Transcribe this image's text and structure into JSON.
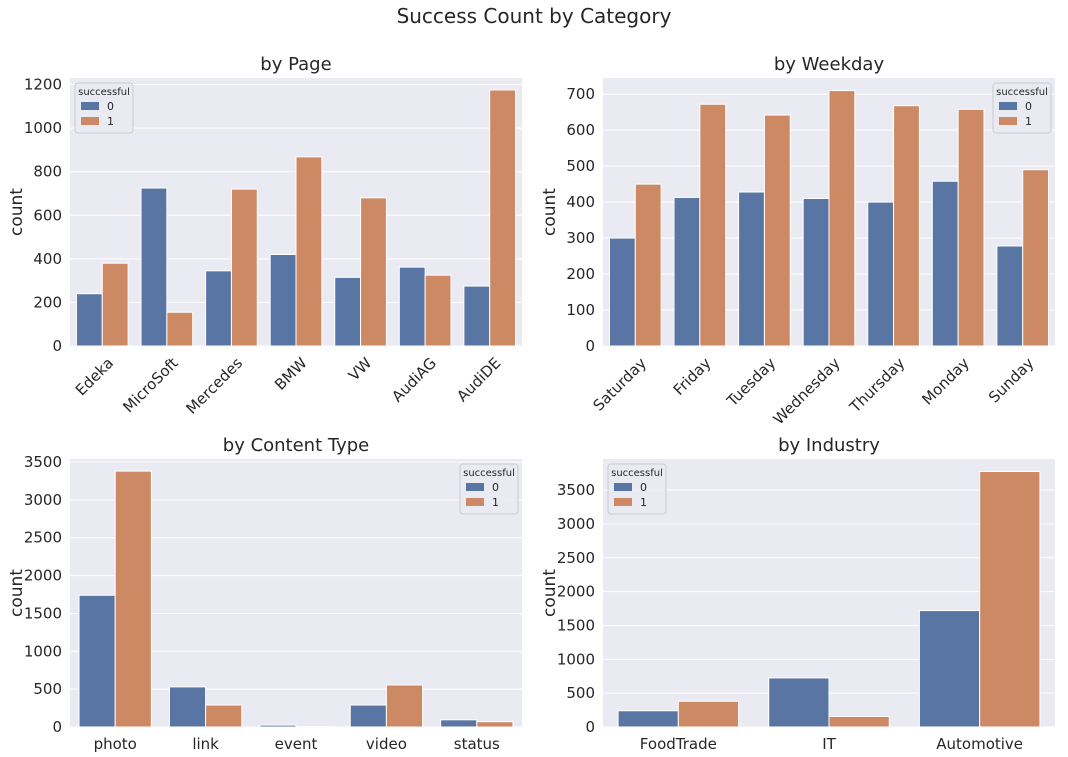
{
  "figure": {
    "suptitle": "Success Count by Category"
  },
  "colors": {
    "series0": "#5975a4",
    "series1": "#cc8963",
    "panel_bg": "#eaeaf2",
    "grid": "#ffffff",
    "text": "#262626"
  },
  "chart_data": [
    {
      "type": "bar",
      "title": "by Page",
      "xlabel": "",
      "ylabel": "count",
      "categories": [
        "Edeka",
        "MicroSoft",
        "Mercedes",
        "BMW",
        "VW",
        "AudiAG",
        "AudiDE"
      ],
      "series": [
        {
          "name": "0",
          "values": [
            240,
            725,
            345,
            420,
            315,
            362,
            275
          ]
        },
        {
          "name": "1",
          "values": [
            380,
            155,
            720,
            868,
            680,
            325,
            1175
          ]
        }
      ],
      "ylim": [
        0,
        1230
      ],
      "yticks": [
        0,
        200,
        400,
        600,
        800,
        1000,
        1200
      ],
      "xtick_rotation": 45,
      "legend": {
        "title": "successful",
        "position": "top-left"
      },
      "grid": true
    },
    {
      "type": "bar",
      "title": "by Weekday",
      "xlabel": "",
      "ylabel": "count",
      "categories": [
        "Saturday",
        "Friday",
        "Tuesday",
        "Wednesday",
        "Thursday",
        "Monday",
        "Sunday"
      ],
      "series": [
        {
          "name": "0",
          "values": [
            300,
            413,
            428,
            410,
            400,
            458,
            278
          ]
        },
        {
          "name": "1",
          "values": [
            450,
            672,
            642,
            710,
            668,
            658,
            490
          ]
        }
      ],
      "ylim": [
        0,
        745
      ],
      "yticks": [
        0,
        100,
        200,
        300,
        400,
        500,
        600,
        700
      ],
      "xtick_rotation": 45,
      "legend": {
        "title": "successful",
        "position": "top-right"
      },
      "grid": true
    },
    {
      "type": "bar",
      "title": "by Content Type",
      "xlabel": "",
      "ylabel": "count",
      "categories": [
        "photo",
        "link",
        "event",
        "video",
        "status"
      ],
      "series": [
        {
          "name": "0",
          "values": [
            1740,
            530,
            25,
            290,
            95
          ]
        },
        {
          "name": "1",
          "values": [
            3380,
            290,
            5,
            555,
            70
          ]
        }
      ],
      "ylim": [
        0,
        3540
      ],
      "yticks": [
        0,
        500,
        1000,
        1500,
        2000,
        2500,
        3000,
        3500
      ],
      "xtick_rotation": 0,
      "legend": {
        "title": "successful",
        "position": "top-right"
      },
      "grid": true
    },
    {
      "type": "bar",
      "title": "by Industry",
      "xlabel": "",
      "ylabel": "count",
      "categories": [
        "FoodTrade",
        "IT",
        "Automotive"
      ],
      "series": [
        {
          "name": "0",
          "values": [
            240,
            725,
            1720
          ]
        },
        {
          "name": "1",
          "values": [
            380,
            155,
            3775
          ]
        }
      ],
      "ylim": [
        0,
        3960
      ],
      "yticks": [
        0,
        500,
        1000,
        1500,
        2000,
        2500,
        3000,
        3500
      ],
      "xtick_rotation": 0,
      "legend": {
        "title": "successful",
        "position": "top-left"
      },
      "grid": true
    }
  ]
}
